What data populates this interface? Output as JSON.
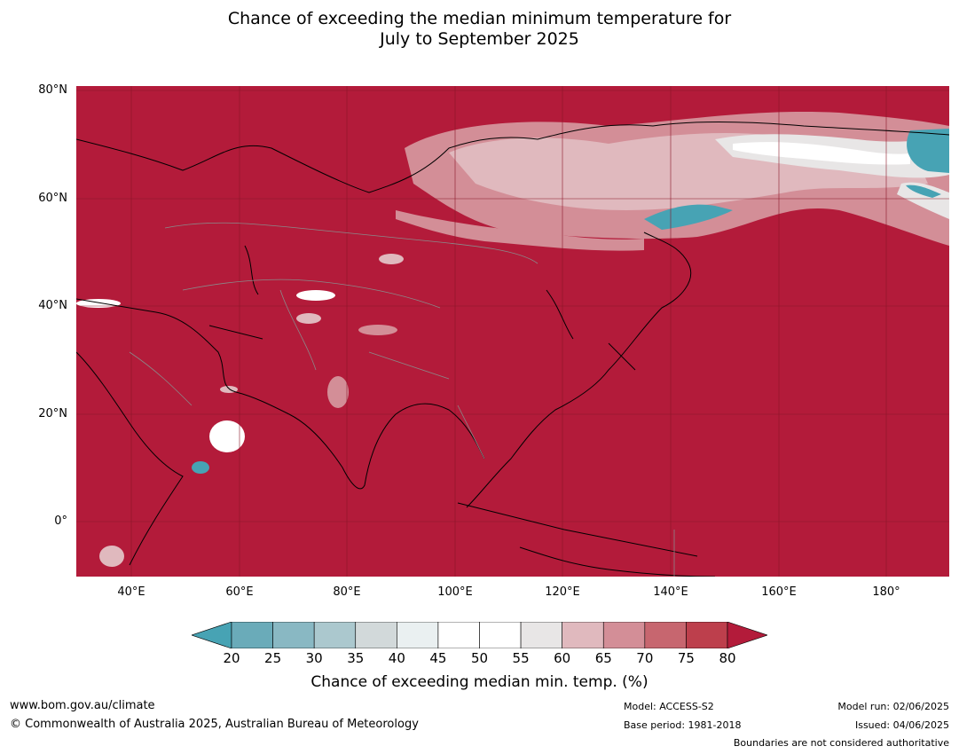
{
  "title_line1": "Chance of exceeding the median minimum temperature for",
  "title_line2": "July to September 2025",
  "map": {
    "lat_ticks": [
      "80°N",
      "60°N",
      "40°N",
      "20°N",
      "0°"
    ],
    "lon_ticks": [
      "40°E",
      "60°E",
      "80°E",
      "100°E",
      "120°E",
      "140°E",
      "160°E",
      "180°"
    ],
    "background_color": "#b31b3a"
  },
  "colorbar": {
    "ticks": [
      "20",
      "25",
      "30",
      "35",
      "40",
      "45",
      "50",
      "55",
      "60",
      "65",
      "70",
      "75",
      "80"
    ],
    "colors": [
      "#6aabb9",
      "#89b8c3",
      "#abc8ce",
      "#d2d9da",
      "#eaf0f1",
      "#ffffff",
      "#ffffff",
      "#e8e6e6",
      "#e0b9be",
      "#d38e97",
      "#c7666f",
      "#bd3f4c"
    ],
    "below_color": "#47a3b4",
    "above_color": "#b31b3a",
    "label": "Chance of exceeding median min. temp. (%)"
  },
  "footer": {
    "url": "www.bom.gov.au/climate",
    "copyright": "© Commonwealth of Australia 2025, Australian Bureau of Meteorology",
    "model": "Model: ACCESS-S2",
    "base_period": "Base period: 1981-2018",
    "model_run": "Model run: 02/06/2025",
    "issued": "Issued: 04/06/2025",
    "disclaimer": "Boundaries are not considered authoritative"
  }
}
